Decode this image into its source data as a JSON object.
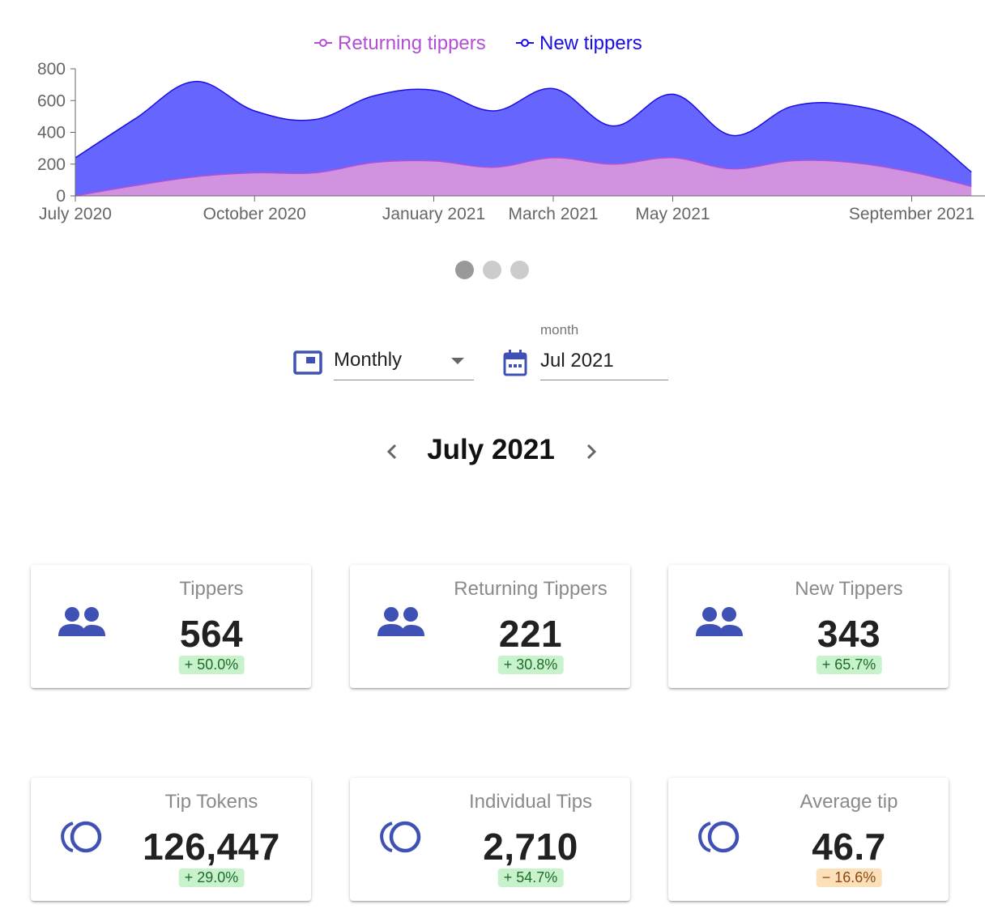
{
  "chart_data": {
    "type": "area",
    "stacked": true,
    "xlabel": "",
    "ylabel": "",
    "x_ticks": [
      {
        "label": "July 2020",
        "month": "2020-07"
      },
      {
        "label": "October 2020",
        "month": "2020-10"
      },
      {
        "label": "January 2021",
        "month": "2021-01"
      },
      {
        "label": "March 2021",
        "month": "2021-03"
      },
      {
        "label": "May 2021",
        "month": "2021-05"
      },
      {
        "label": "September 2021",
        "month": "2021-09"
      }
    ],
    "y_ticks": [
      "0",
      "200",
      "400",
      "600",
      "800"
    ],
    "ylim": [
      0,
      800
    ],
    "legend_position": "top-center",
    "x": [
      "2020-07",
      "2020-08",
      "2020-09",
      "2020-10",
      "2020-11",
      "2020-12",
      "2021-01",
      "2021-02",
      "2021-03",
      "2021-04",
      "2021-05",
      "2021-06",
      "2021-07",
      "2021-08",
      "2021-09",
      "2021-10"
    ],
    "series": [
      {
        "name": "Returning tippers",
        "color": "#b24fd6",
        "fill": "#d193e0",
        "values": [
          0,
          65,
          120,
          145,
          145,
          210,
          220,
          180,
          240,
          200,
          240,
          170,
          221,
          210,
          150,
          60
        ]
      },
      {
        "name": "New tippers",
        "color": "#1a0fe0",
        "fill": "#6666ff",
        "values": [
          240,
          420,
          600,
          390,
          335,
          420,
          445,
          355,
          435,
          240,
          400,
          210,
          343,
          360,
          300,
          90
        ]
      }
    ]
  },
  "legend": {
    "returning": "Returning tippers",
    "new": "New tippers"
  },
  "carousel": {
    "pages": 3,
    "active": 0
  },
  "controls": {
    "period_select": {
      "value": "Monthly",
      "icon": "calendar-view-icon"
    },
    "month_picker": {
      "label": "month",
      "value": "Jul 2021",
      "icon": "calendar-icon"
    }
  },
  "period_title": "July 2021",
  "cards": [
    {
      "title": "Tippers",
      "value": "564",
      "change": "+ 50.0%",
      "trend": "positive",
      "icon": "people-icon"
    },
    {
      "title": "Returning Tippers",
      "value": "221",
      "change": "+ 30.8%",
      "trend": "positive",
      "icon": "people-icon"
    },
    {
      "title": "New Tippers",
      "value": "343",
      "change": "+ 65.7%",
      "trend": "positive",
      "icon": "people-icon"
    },
    {
      "title": "Tip Tokens",
      "value": "126,447",
      "change": "+ 29.0%",
      "trend": "positive",
      "icon": "coins-icon"
    },
    {
      "title": "Individual Tips",
      "value": "2,710",
      "change": "+ 54.7%",
      "trend": "positive",
      "icon": "coins-icon"
    },
    {
      "title": "Average tip",
      "value": "46.7",
      "change": "− 16.6%",
      "trend": "negative",
      "icon": "coins-icon"
    }
  ],
  "colors": {
    "accent": "#3f51b5",
    "positive_bg": "#c8f2cc",
    "negative_bg": "#fbe0b9"
  }
}
